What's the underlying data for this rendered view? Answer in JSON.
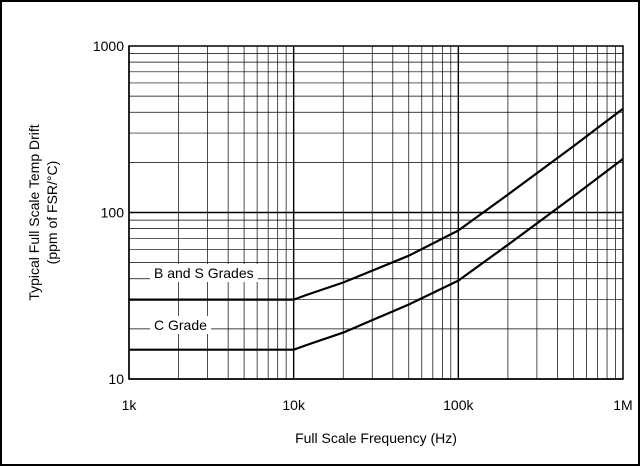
{
  "chart_data": {
    "type": "line",
    "title": "",
    "xlabel": "Full Scale Frequency (Hz)",
    "ylabel_line1": "Typical Full Scale Temp Drift",
    "ylabel_line2": "(ppm of FSR/°C)",
    "x_scale": "log",
    "y_scale": "log",
    "xlim": [
      1000,
      1000000
    ],
    "ylim": [
      10,
      1000
    ],
    "grid": true,
    "x_ticks": [
      {
        "value": 1000,
        "label": "1k"
      },
      {
        "value": 10000,
        "label": "10k"
      },
      {
        "value": 100000,
        "label": "100k"
      },
      {
        "value": 1000000,
        "label": "1M"
      }
    ],
    "y_ticks": [
      {
        "value": 10,
        "label": "10"
      },
      {
        "value": 100,
        "label": "100"
      },
      {
        "value": 1000,
        "label": "1000"
      }
    ],
    "series": [
      {
        "name": "B and S Grades",
        "x": [
          1000,
          10000,
          12000,
          20000,
          50000,
          100000,
          200000,
          500000,
          1000000
        ],
        "y": [
          30,
          30,
          32,
          38,
          55,
          78,
          128,
          250,
          420
        ]
      },
      {
        "name": "C Grade",
        "x": [
          1000,
          10000,
          12000,
          20000,
          50000,
          100000,
          200000,
          500000,
          1000000
        ],
        "y": [
          15,
          15,
          16,
          19,
          28,
          39,
          64,
          125,
          210
        ]
      }
    ],
    "colors": {
      "line": "#000000",
      "grid": "#000000",
      "background": "#ffffff"
    }
  }
}
